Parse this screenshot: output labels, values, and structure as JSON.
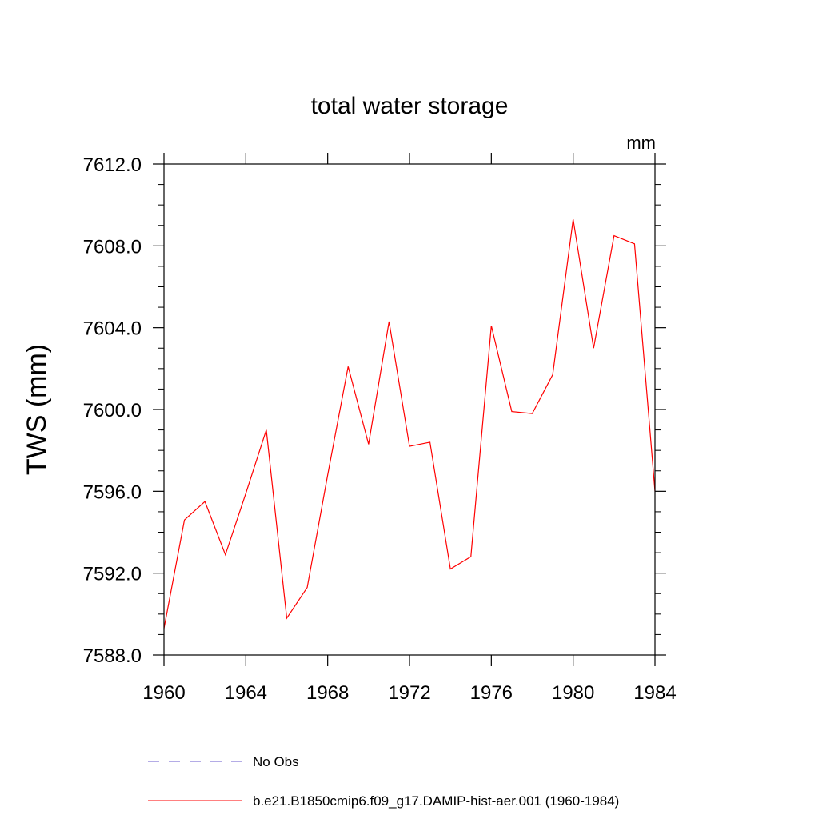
{
  "chart_data": {
    "type": "line",
    "title": "total water storage",
    "units": "mm",
    "xlabel": "",
    "ylabel": "TWS  (mm)",
    "xlim": [
      1960,
      1984
    ],
    "ylim": [
      7588.0,
      7612.0
    ],
    "xticks": [
      1960,
      1964,
      1968,
      1972,
      1976,
      1980,
      1984
    ],
    "xtick_labels": [
      "1960",
      "1964",
      "1968",
      "1972",
      "1976",
      "1980",
      "1984"
    ],
    "yticks": [
      7588.0,
      7592.0,
      7596.0,
      7600.0,
      7604.0,
      7608.0,
      7612.0
    ],
    "ytick_labels": [
      "7588.0",
      "7592.0",
      "7596.0",
      "7600.0",
      "7604.0",
      "7608.0",
      "7612.0"
    ],
    "grid": false,
    "legend_position": "bottom",
    "series": [
      {
        "name": "b.e21.B1850cmip6.f09_g17.DAMIP-hist-aer.001 (1960-1984)",
        "color": "#ff0000",
        "line_style": "solid",
        "x": [
          1960,
          1961,
          1962,
          1963,
          1964,
          1965,
          1966,
          1967,
          1968,
          1969,
          1970,
          1971,
          1972,
          1973,
          1974,
          1975,
          1976,
          1977,
          1978,
          1979,
          1980,
          1981,
          1982,
          1983,
          1984
        ],
        "values": [
          7589.3,
          7594.6,
          7595.5,
          7592.9,
          7595.9,
          7599.0,
          7589.8,
          7591.3,
          7596.8,
          7602.1,
          7598.3,
          7604.3,
          7598.2,
          7598.4,
          7592.2,
          7592.8,
          7604.1,
          7599.9,
          7599.8,
          7601.7,
          7609.3,
          7603.0,
          7608.5,
          7608.1,
          7596.0
        ]
      }
    ],
    "legend": [
      {
        "label": "No Obs",
        "color": "#6a5acd",
        "line_style": "dashed"
      },
      {
        "label": "b.e21.B1850cmip6.f09_g17.DAMIP-hist-aer.001 (1960-1984)",
        "color": "#ff0000",
        "line_style": "solid"
      }
    ]
  }
}
